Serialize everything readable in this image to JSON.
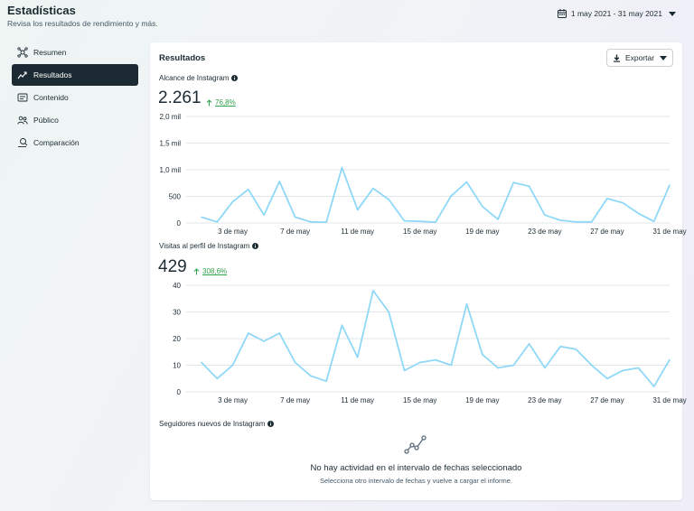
{
  "header": {
    "title": "Estadísticas",
    "subtitle": "Revisa los resultados de rendimiento y más.",
    "date_range": "1 may 2021 - 31 may 2021"
  },
  "sidebar": {
    "items": [
      {
        "label": "Resumen",
        "icon": "overview-icon",
        "active": false
      },
      {
        "label": "Resultados",
        "icon": "trend-icon",
        "active": true
      },
      {
        "label": "Contenido",
        "icon": "content-icon",
        "active": false
      },
      {
        "label": "Público",
        "icon": "audience-icon",
        "active": false
      },
      {
        "label": "Comparación",
        "icon": "compare-icon",
        "active": false
      }
    ]
  },
  "panel": {
    "title": "Resultados",
    "export_label": "Exportar"
  },
  "metrics": {
    "reach": {
      "label": "Alcance de Instagram",
      "value": "2.261",
      "delta": "76,8%"
    },
    "profile_visits": {
      "label": "Visitas al perfil de Instagram",
      "value": "429",
      "delta": "308,6%"
    },
    "new_followers": {
      "label": "Seguidores nuevos de Instagram",
      "empty_title": "No hay actividad en el intervalo de fechas seleccionado",
      "empty_subtitle": "Selecciona otro intervalo de fechas y vuelve a cargar el informe."
    }
  },
  "colors": {
    "line": "#8fd8f8",
    "grid": "#dadde1",
    "positive": "#31a24c",
    "dark": "#1c2b33"
  },
  "chart_data": [
    {
      "type": "line",
      "title": "Alcance de Instagram",
      "x_tick_labels": [
        "3 de may",
        "7 de may",
        "11 de may",
        "15 de may",
        "19 de may",
        "23 de may",
        "27 de may",
        "31 de may"
      ],
      "y_tick_labels": [
        "0",
        "500",
        "1,0 mil",
        "1,5 mil",
        "2,0 mil"
      ],
      "ylim": [
        0,
        2000
      ],
      "x": [
        1,
        2,
        3,
        4,
        5,
        6,
        7,
        8,
        9,
        10,
        11,
        12,
        13,
        14,
        15,
        16,
        17,
        18,
        19,
        20,
        21,
        22,
        23,
        24,
        25,
        26,
        27,
        28,
        29,
        30,
        31
      ],
      "values": [
        110,
        20,
        400,
        630,
        150,
        780,
        110,
        20,
        15,
        1040,
        250,
        650,
        440,
        40,
        30,
        15,
        510,
        770,
        310,
        70,
        760,
        690,
        150,
        50,
        20,
        20,
        460,
        380,
        180,
        30,
        710
      ],
      "grid": true
    },
    {
      "type": "line",
      "title": "Visitas al perfil de Instagram",
      "x_tick_labels": [
        "3 de may",
        "7 de may",
        "11 de may",
        "15 de may",
        "19 de may",
        "23 de may",
        "27 de may",
        "31 de may"
      ],
      "y_tick_labels": [
        "0",
        "10",
        "20",
        "30",
        "40"
      ],
      "ylim": [
        0,
        40
      ],
      "x": [
        1,
        2,
        3,
        4,
        5,
        6,
        7,
        8,
        9,
        10,
        11,
        12,
        13,
        14,
        15,
        16,
        17,
        18,
        19,
        20,
        21,
        22,
        23,
        24,
        25,
        26,
        27,
        28,
        29,
        30,
        31
      ],
      "values": [
        11,
        5,
        10,
        22,
        19,
        22,
        11,
        6,
        4,
        25,
        13,
        38,
        30,
        8,
        11,
        12,
        10,
        33,
        14,
        9,
        10,
        18,
        9,
        17,
        16,
        10,
        5,
        8,
        9,
        2,
        12
      ],
      "grid": true
    }
  ]
}
